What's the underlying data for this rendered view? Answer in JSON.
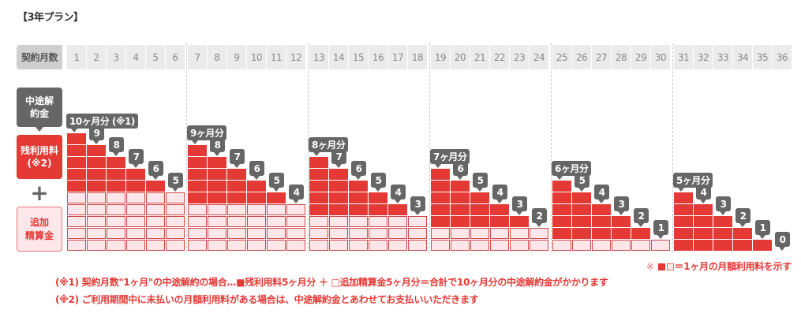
{
  "title": "【3年プラン】",
  "header": {
    "label": "契約月数",
    "months": [
      "1",
      "2",
      "3",
      "4",
      "5",
      "6",
      "7",
      "8",
      "9",
      "10",
      "11",
      "12",
      "13",
      "14",
      "15",
      "16",
      "17",
      "18",
      "19",
      "20",
      "21",
      "22",
      "23",
      "24",
      "25",
      "26",
      "27",
      "28",
      "29",
      "30",
      "31",
      "32",
      "33",
      "34",
      "35",
      "36"
    ]
  },
  "side_labels": {
    "early_termination_fee": "中途解約金",
    "remaining_fee": "残利用料\n(※2)",
    "plus": "+",
    "additional_settlement": "追加\n精算金"
  },
  "colors": {
    "red": "#e53935",
    "pink_fill": "#fde7ea",
    "pink_border": "#d04848",
    "bubble_gray": "#666666",
    "header_gray": "#ebebeb"
  },
  "legend": {
    "prefix": "※",
    "text": "＝1ヶ月の月額利用料を示す"
  },
  "notes": [
    "(※1) 契約月数\"1ヶ月\"の中途解約の場合…■残利用料5ヶ月分 ＋ □追加精算金5ヶ月分＝合計で10ヶ月分の中途解約金がかかります",
    "(※2) ご利用期間中に未払いの月額利用料がある場合は、中途解約金とあわせてお支払いいただきます"
  ],
  "chart_data": {
    "type": "bar",
    "title": "【3年プラン】",
    "xlabel": "契約月数",
    "ylabel": "中途解約金（ヶ月分）",
    "categories": [
      "1",
      "2",
      "3",
      "4",
      "5",
      "6",
      "7",
      "8",
      "9",
      "10",
      "11",
      "12",
      "13",
      "14",
      "15",
      "16",
      "17",
      "18",
      "19",
      "20",
      "21",
      "22",
      "23",
      "24",
      "25",
      "26",
      "27",
      "28",
      "29",
      "30",
      "31",
      "32",
      "33",
      "34",
      "35",
      "36"
    ],
    "series": [
      {
        "name": "残利用料",
        "values": [
          5,
          4,
          3,
          2,
          1,
          0,
          5,
          4,
          3,
          2,
          1,
          0,
          5,
          4,
          3,
          2,
          1,
          0,
          5,
          4,
          3,
          2,
          1,
          0,
          5,
          4,
          3,
          2,
          1,
          0,
          5,
          4,
          3,
          2,
          1,
          0
        ]
      },
      {
        "name": "追加精算金",
        "values": [
          5,
          5,
          5,
          5,
          5,
          5,
          4,
          4,
          4,
          4,
          4,
          4,
          3,
          3,
          3,
          3,
          3,
          3,
          2,
          2,
          2,
          2,
          2,
          2,
          1,
          1,
          1,
          1,
          1,
          1,
          0,
          0,
          0,
          0,
          0,
          0
        ]
      }
    ],
    "totals": [
      10,
      9,
      8,
      7,
      6,
      5,
      9,
      8,
      7,
      6,
      5,
      4,
      8,
      7,
      6,
      5,
      4,
      3,
      7,
      6,
      5,
      4,
      3,
      2,
      6,
      5,
      4,
      3,
      2,
      1,
      5,
      4,
      3,
      2,
      1,
      0
    ],
    "bubble_labels": [
      "10ヶ月分 (※1)",
      "9",
      "8",
      "7",
      "6",
      "5",
      "9ヶ月分",
      "8",
      "7",
      "6",
      "5",
      "4",
      "8ヶ月分",
      "7",
      "6",
      "5",
      "4",
      "3",
      "7ヶ月分",
      "6",
      "5",
      "4",
      "3",
      "2",
      "6ヶ月分",
      "5",
      "4",
      "3",
      "2",
      "1",
      "5ヶ月分",
      "4",
      "3",
      "2",
      "1",
      "0"
    ],
    "stacked": true,
    "legend_position": "bottom-right"
  }
}
